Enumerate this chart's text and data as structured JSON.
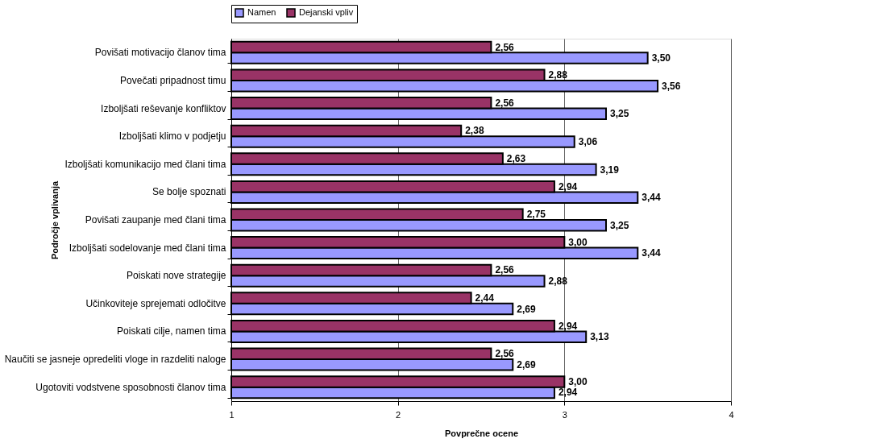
{
  "chart_data": {
    "type": "bar",
    "orientation": "horizontal",
    "xlabel": "Povprečne ocene",
    "ylabel": "Področje vplivanja",
    "categories": [
      "Povišati motivacijo članov tima",
      "Povečati pripadnost timu",
      "Izboljšati reševanje konfliktov",
      "Izboljšati klimo v podjetju",
      "Izboljšati komunikacijo med člani tima",
      "Se bolje spoznati",
      "Povišati zaupanje med člani tima",
      "Izboljšati sodelovanje med člani tima",
      "Poiskati nove strategije",
      "Učinkoviteje sprejemati odločitve",
      "Poiskati cilje, namen tima",
      "Naučiti se jasneje opredeliti vloge in razdeliti naloge",
      "Ugotoviti vodstvene sposobnosti članov tima"
    ],
    "series": [
      {
        "name": "Namen",
        "color": "#9999ff",
        "values": [
          3.5,
          3.56,
          3.25,
          3.06,
          3.19,
          3.44,
          3.25,
          3.44,
          2.88,
          2.69,
          3.13,
          2.69,
          2.94
        ],
        "value_labels": [
          "3,50",
          "3,56",
          "3,25",
          "3,06",
          "3,19",
          "3,44",
          "3,25",
          "3,44",
          "2,88",
          "2,69",
          "3,13",
          "2,69",
          "2,94"
        ]
      },
      {
        "name": "Dejanski vpliv",
        "color": "#993366",
        "values": [
          2.56,
          2.88,
          2.56,
          2.38,
          2.63,
          2.94,
          2.75,
          3.0,
          2.56,
          2.44,
          2.94,
          2.56,
          3.0
        ],
        "value_labels": [
          "2,56",
          "2,88",
          "2,56",
          "2,38",
          "2,63",
          "2,94",
          "2,75",
          "3,00",
          "2,56",
          "2,44",
          "2,94",
          "2,56",
          "3,00"
        ]
      }
    ],
    "xlim": [
      1,
      4
    ],
    "xticks": [
      1,
      2,
      3,
      4
    ],
    "grid": "x",
    "legend": "top"
  }
}
